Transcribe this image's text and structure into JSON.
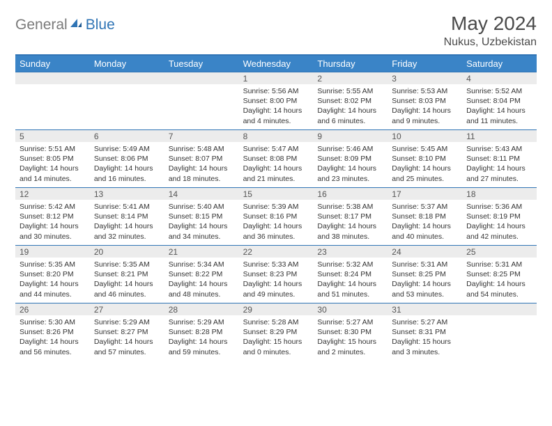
{
  "logo": {
    "part1": "General",
    "part2": "Blue"
  },
  "title": "May 2024",
  "location": "Nukus, Uzbekistan",
  "colors": {
    "header_bg": "#3a84c7",
    "border": "#2f74b5",
    "daynum_bg": "#ececec",
    "text": "#333333",
    "logo_gray": "#7a7a7a",
    "logo_blue": "#2f74b5"
  },
  "day_headers": [
    "Sunday",
    "Monday",
    "Tuesday",
    "Wednesday",
    "Thursday",
    "Friday",
    "Saturday"
  ],
  "weeks": [
    [
      {
        "n": "",
        "lines": []
      },
      {
        "n": "",
        "lines": []
      },
      {
        "n": "",
        "lines": []
      },
      {
        "n": "1",
        "lines": [
          "Sunrise: 5:56 AM",
          "Sunset: 8:00 PM",
          "Daylight: 14 hours",
          "and 4 minutes."
        ]
      },
      {
        "n": "2",
        "lines": [
          "Sunrise: 5:55 AM",
          "Sunset: 8:02 PM",
          "Daylight: 14 hours",
          "and 6 minutes."
        ]
      },
      {
        "n": "3",
        "lines": [
          "Sunrise: 5:53 AM",
          "Sunset: 8:03 PM",
          "Daylight: 14 hours",
          "and 9 minutes."
        ]
      },
      {
        "n": "4",
        "lines": [
          "Sunrise: 5:52 AM",
          "Sunset: 8:04 PM",
          "Daylight: 14 hours",
          "and 11 minutes."
        ]
      }
    ],
    [
      {
        "n": "5",
        "lines": [
          "Sunrise: 5:51 AM",
          "Sunset: 8:05 PM",
          "Daylight: 14 hours",
          "and 14 minutes."
        ]
      },
      {
        "n": "6",
        "lines": [
          "Sunrise: 5:49 AM",
          "Sunset: 8:06 PM",
          "Daylight: 14 hours",
          "and 16 minutes."
        ]
      },
      {
        "n": "7",
        "lines": [
          "Sunrise: 5:48 AM",
          "Sunset: 8:07 PM",
          "Daylight: 14 hours",
          "and 18 minutes."
        ]
      },
      {
        "n": "8",
        "lines": [
          "Sunrise: 5:47 AM",
          "Sunset: 8:08 PM",
          "Daylight: 14 hours",
          "and 21 minutes."
        ]
      },
      {
        "n": "9",
        "lines": [
          "Sunrise: 5:46 AM",
          "Sunset: 8:09 PM",
          "Daylight: 14 hours",
          "and 23 minutes."
        ]
      },
      {
        "n": "10",
        "lines": [
          "Sunrise: 5:45 AM",
          "Sunset: 8:10 PM",
          "Daylight: 14 hours",
          "and 25 minutes."
        ]
      },
      {
        "n": "11",
        "lines": [
          "Sunrise: 5:43 AM",
          "Sunset: 8:11 PM",
          "Daylight: 14 hours",
          "and 27 minutes."
        ]
      }
    ],
    [
      {
        "n": "12",
        "lines": [
          "Sunrise: 5:42 AM",
          "Sunset: 8:12 PM",
          "Daylight: 14 hours",
          "and 30 minutes."
        ]
      },
      {
        "n": "13",
        "lines": [
          "Sunrise: 5:41 AM",
          "Sunset: 8:14 PM",
          "Daylight: 14 hours",
          "and 32 minutes."
        ]
      },
      {
        "n": "14",
        "lines": [
          "Sunrise: 5:40 AM",
          "Sunset: 8:15 PM",
          "Daylight: 14 hours",
          "and 34 minutes."
        ]
      },
      {
        "n": "15",
        "lines": [
          "Sunrise: 5:39 AM",
          "Sunset: 8:16 PM",
          "Daylight: 14 hours",
          "and 36 minutes."
        ]
      },
      {
        "n": "16",
        "lines": [
          "Sunrise: 5:38 AM",
          "Sunset: 8:17 PM",
          "Daylight: 14 hours",
          "and 38 minutes."
        ]
      },
      {
        "n": "17",
        "lines": [
          "Sunrise: 5:37 AM",
          "Sunset: 8:18 PM",
          "Daylight: 14 hours",
          "and 40 minutes."
        ]
      },
      {
        "n": "18",
        "lines": [
          "Sunrise: 5:36 AM",
          "Sunset: 8:19 PM",
          "Daylight: 14 hours",
          "and 42 minutes."
        ]
      }
    ],
    [
      {
        "n": "19",
        "lines": [
          "Sunrise: 5:35 AM",
          "Sunset: 8:20 PM",
          "Daylight: 14 hours",
          "and 44 minutes."
        ]
      },
      {
        "n": "20",
        "lines": [
          "Sunrise: 5:35 AM",
          "Sunset: 8:21 PM",
          "Daylight: 14 hours",
          "and 46 minutes."
        ]
      },
      {
        "n": "21",
        "lines": [
          "Sunrise: 5:34 AM",
          "Sunset: 8:22 PM",
          "Daylight: 14 hours",
          "and 48 minutes."
        ]
      },
      {
        "n": "22",
        "lines": [
          "Sunrise: 5:33 AM",
          "Sunset: 8:23 PM",
          "Daylight: 14 hours",
          "and 49 minutes."
        ]
      },
      {
        "n": "23",
        "lines": [
          "Sunrise: 5:32 AM",
          "Sunset: 8:24 PM",
          "Daylight: 14 hours",
          "and 51 minutes."
        ]
      },
      {
        "n": "24",
        "lines": [
          "Sunrise: 5:31 AM",
          "Sunset: 8:25 PM",
          "Daylight: 14 hours",
          "and 53 minutes."
        ]
      },
      {
        "n": "25",
        "lines": [
          "Sunrise: 5:31 AM",
          "Sunset: 8:25 PM",
          "Daylight: 14 hours",
          "and 54 minutes."
        ]
      }
    ],
    [
      {
        "n": "26",
        "lines": [
          "Sunrise: 5:30 AM",
          "Sunset: 8:26 PM",
          "Daylight: 14 hours",
          "and 56 minutes."
        ]
      },
      {
        "n": "27",
        "lines": [
          "Sunrise: 5:29 AM",
          "Sunset: 8:27 PM",
          "Daylight: 14 hours",
          "and 57 minutes."
        ]
      },
      {
        "n": "28",
        "lines": [
          "Sunrise: 5:29 AM",
          "Sunset: 8:28 PM",
          "Daylight: 14 hours",
          "and 59 minutes."
        ]
      },
      {
        "n": "29",
        "lines": [
          "Sunrise: 5:28 AM",
          "Sunset: 8:29 PM",
          "Daylight: 15 hours",
          "and 0 minutes."
        ]
      },
      {
        "n": "30",
        "lines": [
          "Sunrise: 5:27 AM",
          "Sunset: 8:30 PM",
          "Daylight: 15 hours",
          "and 2 minutes."
        ]
      },
      {
        "n": "31",
        "lines": [
          "Sunrise: 5:27 AM",
          "Sunset: 8:31 PM",
          "Daylight: 15 hours",
          "and 3 minutes."
        ]
      },
      {
        "n": "",
        "lines": []
      }
    ]
  ]
}
